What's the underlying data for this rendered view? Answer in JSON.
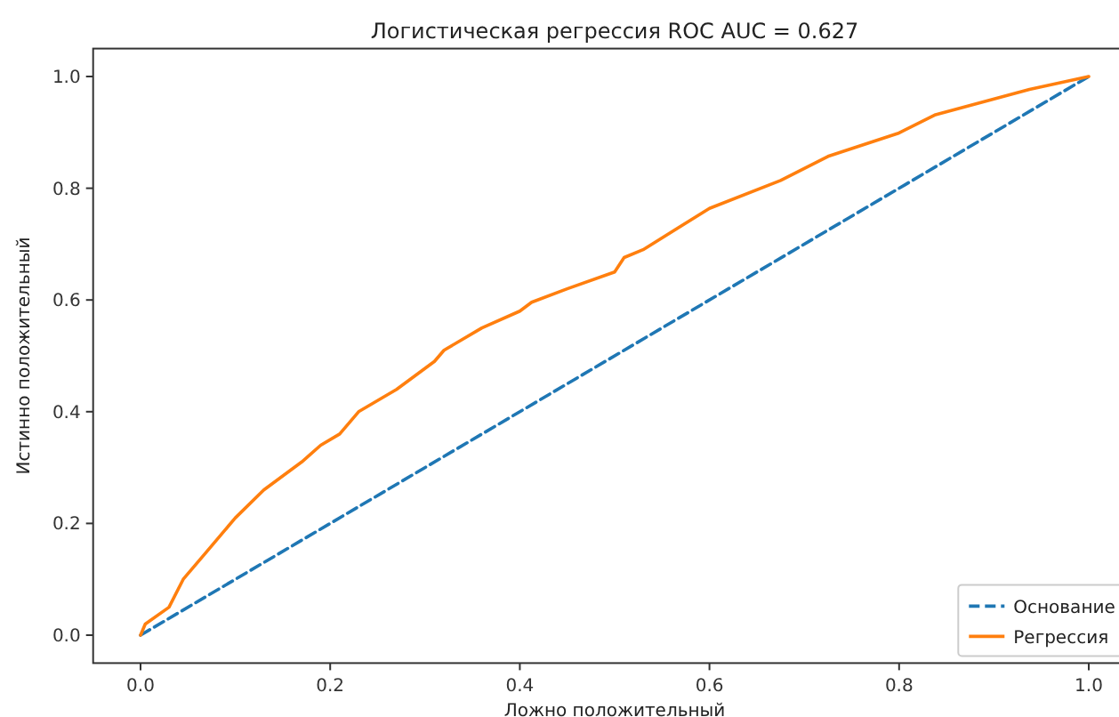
{
  "chart_data": {
    "type": "line",
    "title": "Логистическая регрессия ROC AUC = 0.627",
    "xlabel": "Ложно положительный",
    "ylabel": "Истинно положительный",
    "xlim": [
      -0.05,
      1.05
    ],
    "ylim": [
      -0.05,
      1.05
    ],
    "xticks": [
      {
        "value": 0,
        "label": "0.0"
      },
      0.2,
      0.4,
      0.6,
      0.8,
      {
        "value": 1,
        "label": "1.0"
      }
    ],
    "yticks": [
      {
        "value": 0,
        "label": "0.0"
      },
      0.2,
      0.4,
      0.6,
      0.8,
      {
        "value": 1,
        "label": "1.0"
      }
    ],
    "grid": false,
    "legend": "bottom right",
    "marker": "none",
    "series": [
      {
        "name": "Основание",
        "color": "#1f77b4",
        "line_style": "dashed",
        "x": [
          0,
          1
        ],
        "values": [
          0,
          1
        ]
      },
      {
        "name": "Регрессия",
        "color": "#ff7f0e",
        "line_style": "solid",
        "x": [
          0,
          0.005,
          0.03,
          0.045,
          0.07,
          0.1,
          0.13,
          0.17,
          0.19,
          0.21,
          0.23,
          0.27,
          0.31,
          0.32,
          0.36,
          0.4,
          0.4125,
          0.45,
          0.5,
          0.51,
          0.53,
          0.6,
          0.675,
          0.725,
          0.8,
          0.8375,
          0.9375,
          1
        ],
        "values": [
          0,
          0.02,
          0.05,
          0.1,
          0.15,
          0.21,
          0.26,
          0.31,
          0.34,
          0.36,
          0.4,
          0.44,
          0.49,
          0.51,
          0.55,
          0.58,
          0.596,
          0.62,
          0.65,
          0.676,
          0.69,
          0.764,
          0.814,
          0.857,
          0.899,
          0.931,
          0.977,
          1
        ]
      }
    ]
  }
}
